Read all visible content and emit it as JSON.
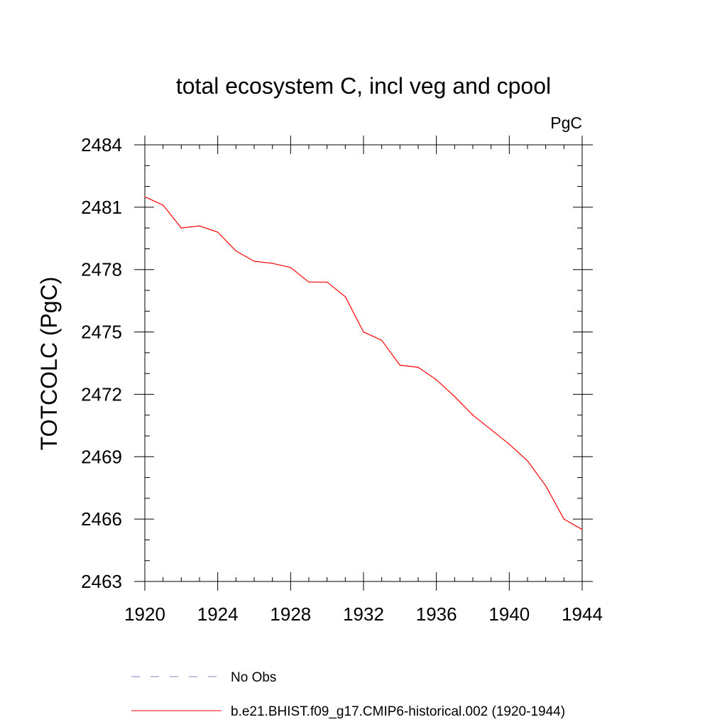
{
  "chart_data": {
    "type": "line",
    "title": "total ecosystem C, incl veg and cpool",
    "units": "PgC",
    "xlabel": "",
    "ylabel": "TOTCOLC  (PgC)",
    "xlim": [
      1920,
      1944
    ],
    "ylim": [
      2463,
      2484
    ],
    "xticks": [
      1920,
      1924,
      1928,
      1932,
      1936,
      1940,
      1944
    ],
    "yticks": [
      2463,
      2466,
      2469,
      2472,
      2475,
      2478,
      2481,
      2484
    ],
    "grid": false,
    "legend_position": "bottom",
    "series": [
      {
        "name": "b.e21.BHIST.f09_g17.CMIP6-historical.002 (1920-1944)",
        "color": "#ff0000",
        "style": "solid",
        "x": [
          1920,
          1921,
          1922,
          1923,
          1924,
          1925,
          1926,
          1927,
          1928,
          1929,
          1930,
          1931,
          1932,
          1933,
          1934,
          1935,
          1936,
          1937,
          1938,
          1939,
          1940,
          1941,
          1942,
          1943,
          1944
        ],
        "values": [
          2481.5,
          2481.1,
          2480.0,
          2480.1,
          2479.8,
          2478.9,
          2478.4,
          2478.3,
          2478.1,
          2477.4,
          2477.4,
          2476.7,
          2475.0,
          2474.6,
          2473.4,
          2473.3,
          2472.7,
          2471.9,
          2471.0,
          2470.3,
          2469.6,
          2468.8,
          2467.6,
          2466.0,
          2465.5
        ]
      }
    ],
    "legend": [
      {
        "label": "No Obs",
        "color": "#8080c0",
        "style": "dashed"
      },
      {
        "label": "b.e21.BHIST.f09_g17.CMIP6-historical.002 (1920-1944)",
        "color": "#ff0000",
        "style": "solid"
      }
    ]
  }
}
